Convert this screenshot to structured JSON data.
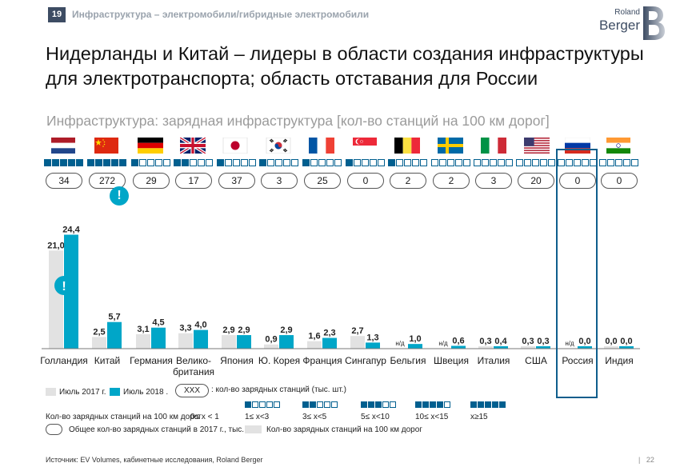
{
  "header": {
    "slide_no": "19",
    "section": "Инфраструктура – электромобили/гибридные электромобили"
  },
  "logo": {
    "roland": "Roland",
    "berger": "Berger"
  },
  "title": "Нидерланды и Китай – лидеры в области создания инфраструктуры для электротранспорта; область отставания для России",
  "subtitle": "Инфраструктура: зарядная инфраструктура [кол-во станций на 100 км дорог]",
  "colors": {
    "bar2017": "#e2e2e2",
    "bar2018": "#00a6c8",
    "score": "#005f8f",
    "highlight": "#0f5e8c"
  },
  "countries": [
    {
      "flag": "netherlands-flag",
      "score": 5,
      "total": "34",
      "label": "Голландия"
    },
    {
      "flag": "china-flag",
      "score": 5,
      "total": "272",
      "label": "Китай"
    },
    {
      "flag": "germany-flag",
      "score": 1,
      "total": "29",
      "label": "Германия"
    },
    {
      "flag": "uk-flag",
      "score": 2,
      "total": "17",
      "label": "Велико-британия"
    },
    {
      "flag": "japan-flag",
      "score": 1,
      "total": "37",
      "label": "Япония"
    },
    {
      "flag": "korea-flag",
      "score": 1,
      "total": "3",
      "label": "Ю. Корея"
    },
    {
      "flag": "france-flag",
      "score": 1,
      "total": "25",
      "label": "Франция"
    },
    {
      "flag": "singapore-flag",
      "score": 1,
      "total": "0",
      "label": "Сингапур"
    },
    {
      "flag": "belgium-flag",
      "score": 1,
      "total": "2",
      "label": "Бельгия"
    },
    {
      "flag": "sweden-flag",
      "score": 0,
      "total": "2",
      "label": "Швеция"
    },
    {
      "flag": "italy-flag",
      "score": 0,
      "total": "3",
      "label": "Италия"
    },
    {
      "flag": "usa-flag",
      "score": 0,
      "total": "20",
      "label": "США"
    },
    {
      "flag": "russia-flag",
      "score": 0,
      "total": "0",
      "label": "Россия"
    },
    {
      "flag": "india-flag",
      "score": 0,
      "total": "0",
      "label": "Индия"
    }
  ],
  "chart_data": {
    "type": "bar",
    "categories": [
      "Голландия",
      "Китай",
      "Германия",
      "Велико-британия",
      "Япония",
      "Ю. Корея",
      "Франция",
      "Сингапур",
      "Бельгия",
      "Швеция",
      "Италия",
      "США",
      "Россия",
      "Индия"
    ],
    "series": [
      {
        "name": "Июль 2017 г.",
        "values": [
          21.0,
          2.5,
          3.1,
          3.3,
          2.9,
          0.9,
          1.6,
          2.7,
          null,
          null,
          0.3,
          0.3,
          null,
          0.0
        ],
        "labels": [
          "21,0",
          "2,5",
          "3,1",
          "3,3",
          "2,9",
          "0,9",
          "1,6",
          "2,7",
          "н/д",
          "н/д",
          "0,3",
          "0,3",
          "н/д",
          "0,0"
        ]
      },
      {
        "name": "Июль 2018 .",
        "values": [
          24.4,
          5.7,
          4.5,
          4.0,
          2.9,
          2.9,
          2.3,
          1.3,
          1.0,
          0.6,
          0.4,
          0.3,
          0.0,
          0.0
        ],
        "labels": [
          "24,4",
          "5,7",
          "4,5",
          "4,0",
          "2,9",
          "2,9",
          "2,3",
          "1,3",
          "1,0",
          "0,6",
          "0,4",
          "0,3",
          "0,0",
          "0,0"
        ]
      }
    ],
    "ylim": [
      0,
      25
    ]
  },
  "legend": {
    "s2017": "Июль 2017 г.",
    "s2018": "Июль 2018 .",
    "pill_sample": "XXX",
    "pill_desc": ": кол-во зарядных станций (тыс. шт.)",
    "scale_title": "Кол-во зарядных станций на 100 км дорог",
    "scale": [
      "0≤ x < 1",
      "1≤ x<3",
      "3≤ x<5",
      "5≤ x<10",
      "10≤ x<15",
      "x≥15"
    ],
    "total_desc": "Общее кол-во зарядных станций в 2017 г., тыс. шт",
    "bar_desc": "Кол-во зарядных станций на 100 км дорог"
  },
  "footer": {
    "source": "Источник: EV Volumes, кабинетные исследования, Roland Berger",
    "page": "22"
  }
}
